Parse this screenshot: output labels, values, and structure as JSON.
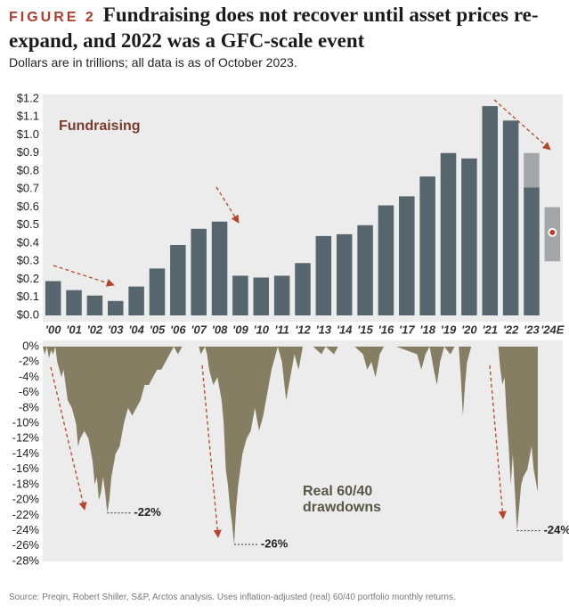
{
  "chart_data": [
    {
      "type": "bar",
      "figure": "FIGURE 2",
      "title": "Fundraising does not recover until asset prices re-expand, and 2022 was a GFC-scale event",
      "subtitle": "Dollars are in trillions; all data is as of October 2023.",
      "source": "Source: Preqin, Robert Shiller, S&P, Arctos analysis. Uses inflation-adjusted (real) 60/40 portfolio monthly returns.",
      "annotation": "Fundraising",
      "categories": [
        "'00",
        "'01",
        "'02",
        "'03",
        "'04",
        "'05",
        "'06",
        "'07",
        "'08",
        "'09",
        "'10",
        "'11",
        "'12",
        "'13",
        "'14",
        "'15",
        "'16",
        "'17",
        "'18",
        "'19",
        "'20",
        "'21",
        "'22",
        "'23",
        "'24E"
      ],
      "series": [
        {
          "color": "#56656e",
          "values": [
            0.19,
            0.14,
            0.11,
            0.08,
            0.16,
            0.26,
            0.39,
            0.48,
            0.52,
            0.22,
            0.21,
            0.22,
            0.29,
            0.44,
            0.45,
            0.5,
            0.61,
            0.66,
            0.77,
            0.9,
            0.87,
            1.16,
            1.08,
            0.71,
            null
          ]
        },
        {
          "color": "#a3a6a7",
          "values": [
            null,
            null,
            null,
            null,
            null,
            null,
            null,
            null,
            null,
            null,
            null,
            null,
            null,
            null,
            null,
            null,
            null,
            null,
            null,
            null,
            null,
            null,
            null,
            0.19,
            null
          ]
        }
      ],
      "estimate": {
        "index": 24,
        "low": 0.3,
        "high": 0.6,
        "point": 0.46,
        "color": "#a3a6a7",
        "point_color": "#c0392b"
      },
      "ylim": [
        0,
        1.2
      ],
      "yticks": [
        {
          "value": 0,
          "label": "$0.0"
        },
        {
          "value": 0.1,
          "label": "$0.1"
        },
        {
          "value": 0.2,
          "label": "$0.2"
        },
        {
          "value": 0.3,
          "label": "$0.3"
        },
        {
          "value": 0.4,
          "label": "$0.4"
        },
        {
          "value": 0.5,
          "label": "$0.5"
        },
        {
          "value": 0.6,
          "label": "$0.6"
        },
        {
          "value": 0.7,
          "label": "$0.7"
        },
        {
          "value": 0.8,
          "label": "$0.8"
        },
        {
          "value": 0.9,
          "label": "$0.9"
        },
        {
          "value": 1.0,
          "label": "$1.0"
        },
        {
          "value": 1.1,
          "label": "$1.1"
        },
        {
          "value": 1.2,
          "label": "$1.2"
        }
      ]
    },
    {
      "type": "area",
      "annotation": [
        "Real 60/40",
        "drawdowns"
      ],
      "color": "#857e62",
      "x": [
        2000.0,
        2000.1,
        2000.2,
        2000.3,
        2000.4,
        2000.5,
        2000.6,
        2000.7,
        2000.8,
        2000.9,
        2001.0,
        2001.2,
        2001.4,
        2001.6,
        2001.7,
        2001.8,
        2002.0,
        2002.2,
        2002.4,
        2002.5,
        2002.6,
        2002.7,
        2002.8,
        2002.9,
        2003.0,
        2003.1,
        2003.2,
        2003.3,
        2003.5,
        2003.7,
        2003.9,
        2004.1,
        2004.3,
        2004.5,
        2004.7,
        2004.9,
        2005.1,
        2005.3,
        2005.5,
        2005.7,
        2005.9,
        2006.1,
        2006.3,
        2006.5,
        2006.7,
        2007.0,
        2007.5,
        2007.6,
        2007.8,
        2007.9,
        2008.0,
        2008.2,
        2008.4,
        2008.6,
        2008.7,
        2008.8,
        2008.9,
        2009.0,
        2009.1,
        2009.2,
        2009.3,
        2009.4,
        2009.6,
        2009.8,
        2010.0,
        2010.2,
        2010.4,
        2010.6,
        2010.8,
        2011.0,
        2011.2,
        2011.3,
        2011.5,
        2011.7,
        2011.9,
        2012.1,
        2012.3,
        2012.5,
        2013.0,
        2013.4,
        2013.6,
        2014.0,
        2014.2,
        2015.0,
        2015.4,
        2015.6,
        2015.8,
        2016.0,
        2016.2,
        2016.4,
        2017.0,
        2018.0,
        2018.2,
        2018.4,
        2018.6,
        2018.8,
        2018.95,
        2019.1,
        2019.3,
        2019.6,
        2019.8,
        2020.0,
        2020.1,
        2020.2,
        2020.3,
        2020.4,
        2020.6,
        2021.0,
        2021.9,
        2022.0,
        2022.1,
        2022.2,
        2022.3,
        2022.4,
        2022.5,
        2022.6,
        2022.7,
        2022.8,
        2022.9,
        2023.0,
        2023.1,
        2023.3,
        2023.5,
        2023.6,
        2023.8
      ],
      "values": [
        0,
        -1,
        0,
        -1.5,
        -0.5,
        -1,
        0,
        -2,
        -3,
        -4,
        -3,
        -7,
        -8,
        -10,
        -13,
        -12,
        -11,
        -12,
        -15,
        -18,
        -17,
        -20,
        -19,
        -17,
        -19,
        -21.7,
        -20,
        -17,
        -14,
        -13,
        -10,
        -8,
        -9,
        -8,
        -7,
        -5,
        -5,
        -4,
        -3,
        -3,
        -2,
        -1,
        0,
        -1,
        0,
        0,
        0,
        -1,
        0,
        -1,
        -3,
        -5,
        -4,
        -7,
        -10,
        -16,
        -18,
        -21,
        -23,
        -25.8,
        -21,
        -18,
        -14,
        -12,
        -11,
        -8,
        -11,
        -9,
        -6,
        -3,
        -1,
        0,
        -2,
        -7,
        -4,
        -1,
        -3,
        0,
        0,
        -1,
        0,
        -1,
        0,
        0,
        -1,
        -3,
        -2,
        -4,
        -1,
        0,
        0,
        -1,
        -3,
        -1,
        0,
        -3,
        -5,
        -2,
        0,
        -1,
        0,
        0,
        -4,
        -9,
        -5,
        -2,
        0,
        0,
        0,
        -3,
        -5,
        -4,
        -9,
        -13,
        -18,
        -14,
        -19,
        -24,
        -21,
        -18,
        -17,
        -16,
        -13,
        -16,
        -19
      ],
      "xlim": [
        2000,
        2025
      ],
      "trough_labels": [
        {
          "x": 2003.1,
          "value": -21.7,
          "label": "-22%"
        },
        {
          "x": 2009.2,
          "value": -25.8,
          "label": "-26%"
        },
        {
          "x": 2022.8,
          "value": -24,
          "label": "-24%"
        }
      ],
      "ylim": [
        -28,
        0
      ],
      "yticks": [
        {
          "value": 0,
          "label": "0%"
        },
        {
          "value": -2,
          "label": "-2%"
        },
        {
          "value": -4,
          "label": "-4%"
        },
        {
          "value": -6,
          "label": "-6%"
        },
        {
          "value": -8,
          "label": "-8%"
        },
        {
          "value": -10,
          "label": "-10%"
        },
        {
          "value": -12,
          "label": "-12%"
        },
        {
          "value": -14,
          "label": "-14%"
        },
        {
          "value": -16,
          "label": "-16%"
        },
        {
          "value": -18,
          "label": "-18%"
        },
        {
          "value": -20,
          "label": "-20%"
        },
        {
          "value": -22,
          "label": "-22%"
        },
        {
          "value": -24,
          "label": "-24%"
        },
        {
          "value": -26,
          "label": "-26%"
        },
        {
          "value": -28,
          "label": "-28%"
        }
      ]
    }
  ]
}
